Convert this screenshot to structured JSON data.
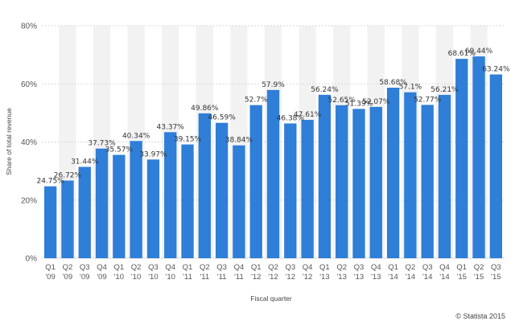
{
  "chart_data": {
    "type": "bar",
    "title": "",
    "xlabel": "Fiscal quarter",
    "ylabel": "Share of total revenue",
    "ylim": [
      0,
      80
    ],
    "yticks": [
      "0%",
      "20%",
      "40%",
      "60%",
      "80%"
    ],
    "grid": true,
    "categories": [
      [
        "Q1",
        "'09"
      ],
      [
        "Q2",
        "'09"
      ],
      [
        "Q3",
        "'09"
      ],
      [
        "Q4",
        "'09"
      ],
      [
        "Q1",
        "'10"
      ],
      [
        "Q2",
        "'10"
      ],
      [
        "Q3",
        "'10"
      ],
      [
        "Q4",
        "'10"
      ],
      [
        "Q1",
        "'11"
      ],
      [
        "Q2",
        "'11"
      ],
      [
        "Q3",
        "'11"
      ],
      [
        "Q4",
        "'11"
      ],
      [
        "Q1",
        "'12"
      ],
      [
        "Q2",
        "'12"
      ],
      [
        "Q3",
        "'12"
      ],
      [
        "Q4",
        "'12"
      ],
      [
        "Q1",
        "'13"
      ],
      [
        "Q2",
        "'13"
      ],
      [
        "Q3",
        "'13"
      ],
      [
        "Q4",
        "'13"
      ],
      [
        "Q1",
        "'14"
      ],
      [
        "Q2",
        "'14"
      ],
      [
        "Q3",
        "'14"
      ],
      [
        "Q4",
        "'14"
      ],
      [
        "Q1",
        "'15"
      ],
      [
        "Q2",
        "'15"
      ],
      [
        "Q3",
        "'15"
      ]
    ],
    "values": [
      24.75,
      26.72,
      31.44,
      37.73,
      35.57,
      40.34,
      33.97,
      43.37,
      39.15,
      49.86,
      46.59,
      38.84,
      52.7,
      57.9,
      46.38,
      47.61,
      56.24,
      52.65,
      51.39,
      52.07,
      58.68,
      57.1,
      52.77,
      56.21,
      68.61,
      69.44,
      63.24
    ],
    "value_labels": [
      "24.75%",
      "26.72%",
      "31.44%",
      "37.73%",
      "35.57%",
      "40.34%",
      "33.97%",
      "43.37%",
      "39.15%",
      "49.86%",
      "46.59%",
      "38.84%",
      "52.7%",
      "57.9%",
      "46.38%",
      "47.61%",
      "56.24%",
      "52.65%",
      "51.39%",
      "52.07%",
      "58.68%",
      "57.1%",
      "52.77%",
      "56.21%",
      "68.61%",
      "69.44%",
      "63.24%"
    ],
    "bar_color": "#2f7ed8",
    "band_color": "#f2f2f2"
  },
  "credit": "© Statista 2015"
}
